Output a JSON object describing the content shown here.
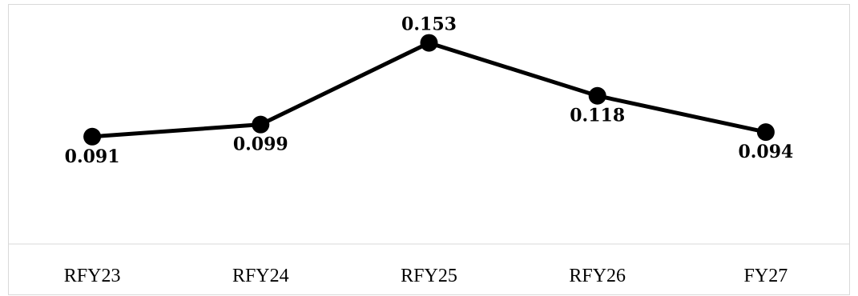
{
  "chart_data": {
    "type": "line",
    "title": "",
    "xlabel": "",
    "ylabel": "",
    "categories": [
      "RFY23",
      "RFY24",
      "RFY25",
      "RFY26",
      "FY27"
    ],
    "series": [
      {
        "values": [
          0.091,
          0.099,
          0.153,
          0.118,
          0.094
        ],
        "labels": [
          "0.091",
          "0.099",
          "0.153",
          "0.118",
          "0.094"
        ],
        "color": "#000000"
      }
    ],
    "ylim": [
      0.02,
      0.175
    ],
    "grid": false,
    "legend": "none",
    "axis_color": "#d9d9d9"
  }
}
